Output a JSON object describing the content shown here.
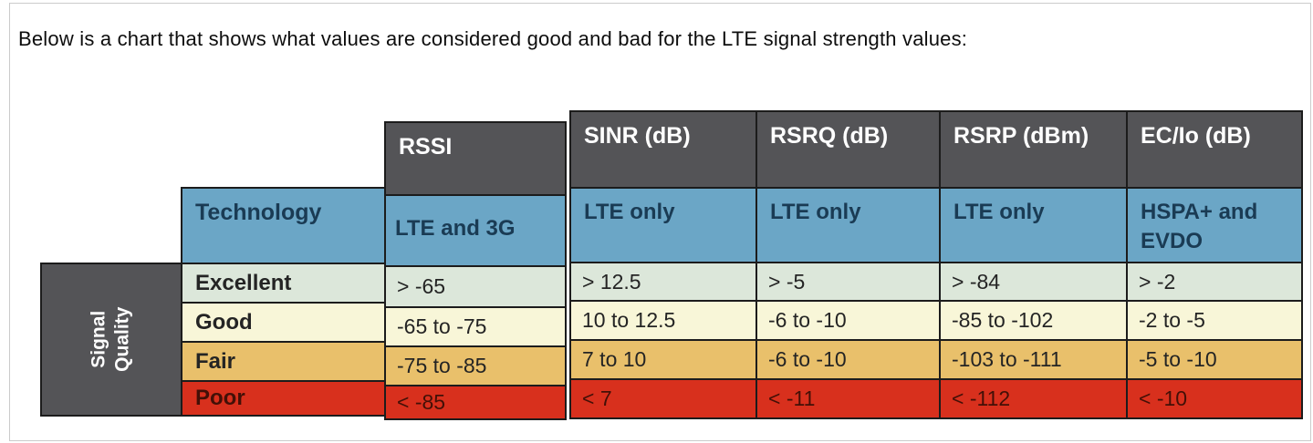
{
  "caption": "Below is a chart that shows what values are considered good and bad for the LTE signal strength values:",
  "corner": {
    "line1": "Signal",
    "line2": "Quality"
  },
  "row_header": "Technology",
  "qualities": [
    {
      "label": "Excellent",
      "color": "#dce7da"
    },
    {
      "label": "Good",
      "color": "#f8f6d8"
    },
    {
      "label": "Fair",
      "color": "#e9c06b"
    },
    {
      "label": "Poor",
      "color": "#d8301d"
    }
  ],
  "columns": [
    {
      "metric": "RSSI",
      "technology": "LTE and 3G",
      "values": [
        "> -65",
        "-65 to -75",
        "-75 to -85",
        "< -85"
      ]
    },
    {
      "metric": "SINR (dB)",
      "technology": "LTE only",
      "values": [
        "> 12.5",
        "10 to 12.5",
        "7 to 10",
        "< 7"
      ]
    },
    {
      "metric": "RSRQ (dB)",
      "technology": "LTE only",
      "values": [
        "> -5",
        "-6 to -10",
        "-6 to -10",
        "< -11"
      ]
    },
    {
      "metric": "RSRP (dBm)",
      "technology": "LTE only",
      "values": [
        "> -84",
        "-85 to -102",
        "-103 to -111",
        "< -112"
      ]
    },
    {
      "metric": "EC/Io (dB)",
      "technology": "HSPA+ and EVDO",
      "values": [
        "> -2",
        "-2 to -5",
        "-5 to -10",
        "< -10"
      ]
    }
  ],
  "colors": {
    "header_bg": "#545457",
    "technology_bg": "#6ba6c6",
    "technology_text": "#1a3b54",
    "excellent_bg": "#dce7da",
    "good_bg": "#f8f6d8",
    "fair_bg": "#e9c06b",
    "poor_bg": "#d8301d",
    "grid_border": "#1c1c1c"
  },
  "chart_data": {
    "type": "table",
    "title": "Below is a chart that shows what values are considered good and bad for the LTE signal strength values:",
    "row_header": "Signal Quality",
    "columns": [
      "Technology",
      "RSSI (LTE and 3G)",
      "SINR (dB) (LTE only)",
      "RSRQ (dB) (LTE only)",
      "RSRP (dBm) (LTE only)",
      "EC/Io (dB) (HSPA+ and EVDO)"
    ],
    "rows": [
      [
        "Excellent",
        "> -65",
        "> 12.5",
        "> -5",
        "> -84",
        "> -2"
      ],
      [
        "Good",
        "-65 to -75",
        "10 to 12.5",
        "-6 to -10",
        "-85 to -102",
        "-2 to -5"
      ],
      [
        "Fair",
        "-75 to -85",
        "7 to 10",
        "-6 to -10",
        "-103 to -111",
        "-5 to -10"
      ],
      [
        "Poor",
        "< -85",
        "< 7",
        "< -11",
        "< -112",
        "< -10"
      ]
    ]
  }
}
